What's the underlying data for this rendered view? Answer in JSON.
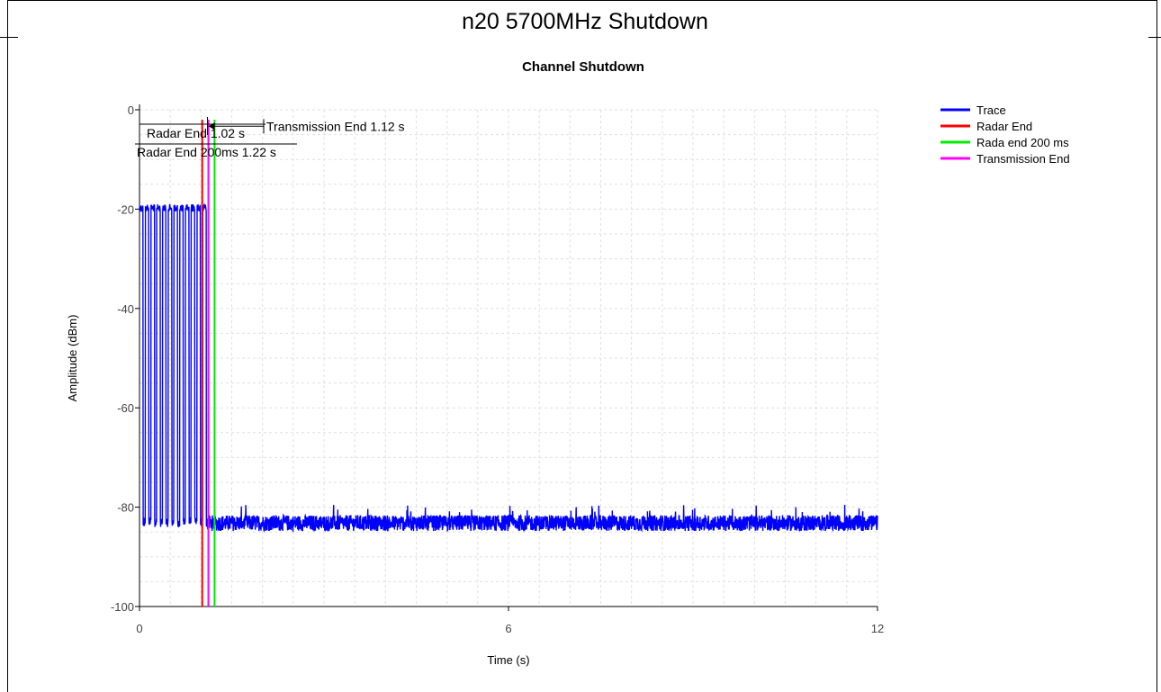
{
  "page": {
    "title": "n20 5700MHz Shutdown"
  },
  "chart_data": {
    "type": "line",
    "title": "Channel Shutdown",
    "xlabel": "Time (s)",
    "ylabel": "Amplitude (dBm)",
    "xlim": [
      0,
      12
    ],
    "ylim": [
      -100,
      0
    ],
    "x_ticks": [
      "0",
      "6",
      "12"
    ],
    "y_ticks": [
      "0",
      "-20",
      "-40",
      "-60",
      "-80",
      "-100"
    ],
    "grid": true,
    "legend_position": "right",
    "series": [
      {
        "name": "Trace",
        "color": "#0000ff",
        "description_points": {
          "burst_region_x": [
            0.0,
            1.12
          ],
          "burst_peak": -19,
          "burst_floor": -83,
          "noise_floor_x": [
            1.12,
            12.0
          ],
          "noise_floor_level": -83
        }
      },
      {
        "name": "Radar End",
        "color": "#ff0000",
        "x": 1.02
      },
      {
        "name": "Rada end 200 ms",
        "color": "#00ee00",
        "x": 1.22
      },
      {
        "name": "Transmission End",
        "color": "#ff00ff",
        "x": 1.12
      }
    ],
    "annotations": [
      {
        "text": "Transmission End 1.12 s",
        "x": 1.12,
        "y": -1.5
      },
      {
        "text": "Radar End 1.02 s",
        "x": 1.02,
        "y": -4.5
      },
      {
        "text": "Radar End 200ms 1.22 s",
        "x": 1.22,
        "y": -7
      }
    ]
  }
}
